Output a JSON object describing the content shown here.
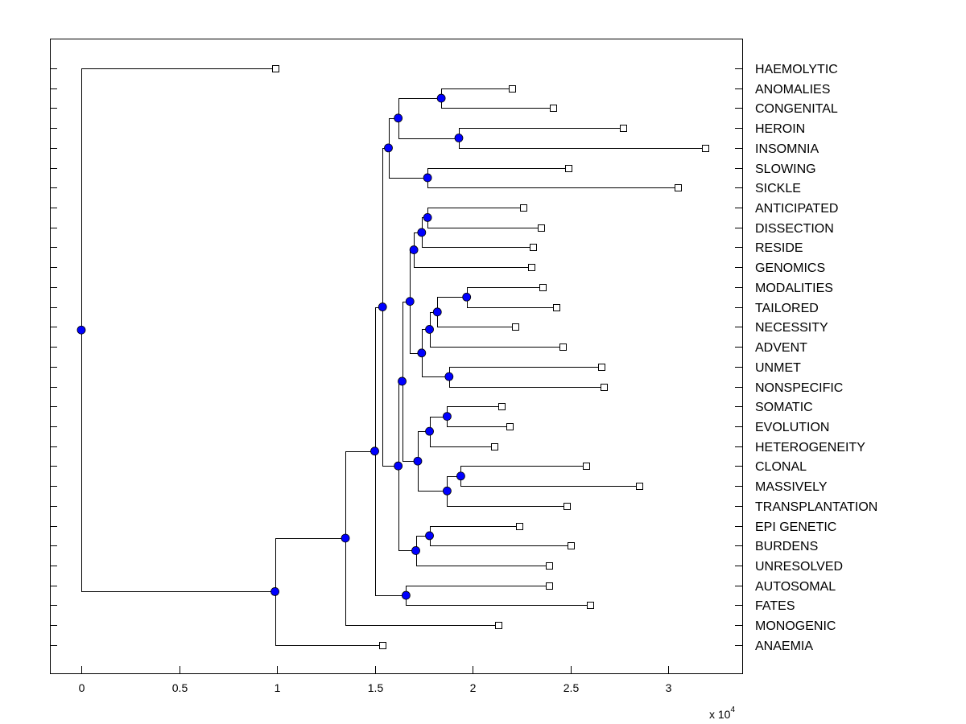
{
  "chart_data": {
    "type": "dendrogram",
    "title": "",
    "xlabel": "",
    "ylabel": "",
    "x_scale_label": "x 10",
    "x_scale_exponent": "4",
    "xlim": [
      -0.15,
      3.35
    ],
    "xticks": [
      0,
      0.5,
      1,
      1.5,
      2,
      2.5,
      3
    ],
    "xtick_labels": [
      "0",
      "0.5",
      "1",
      "1.5",
      "2",
      "2.5",
      "3"
    ],
    "colors": {
      "node": "#0000ff",
      "line": "#000000",
      "leaf": "#ffffff"
    },
    "leaves": [
      {
        "label": "HAEMOLYTIC",
        "x": 0.99
      },
      {
        "label": "ANOMALIES",
        "x": 2.2
      },
      {
        "label": "CONGENITAL",
        "x": 2.41
      },
      {
        "label": "HEROIN",
        "x": 2.77
      },
      {
        "label": "INSOMNIA",
        "x": 3.19
      },
      {
        "label": "SLOWING",
        "x": 2.49
      },
      {
        "label": "SICKLE",
        "x": 3.05
      },
      {
        "label": "ANTICIPATED",
        "x": 2.26
      },
      {
        "label": "DISSECTION",
        "x": 2.35
      },
      {
        "label": "RESIDE",
        "x": 2.31
      },
      {
        "label": "GENOMICS",
        "x": 2.3
      },
      {
        "label": "MODALITIES",
        "x": 2.36
      },
      {
        "label": "TAILORED",
        "x": 2.43
      },
      {
        "label": "NECESSITY",
        "x": 2.22
      },
      {
        "label": "ADVENT",
        "x": 2.46
      },
      {
        "label": "UNMET",
        "x": 2.66
      },
      {
        "label": "NONSPECIFIC",
        "x": 2.67
      },
      {
        "label": "SOMATIC",
        "x": 2.15
      },
      {
        "label": "EVOLUTION",
        "x": 2.19
      },
      {
        "label": "HETEROGENEITY",
        "x": 2.11
      },
      {
        "label": "CLONAL",
        "x": 2.58
      },
      {
        "label": "MASSIVELY",
        "x": 2.85
      },
      {
        "label": "TRANSPLANTATION",
        "x": 2.48
      },
      {
        "label": "EPI GENETIC",
        "x": 2.24
      },
      {
        "label": "BURDENS",
        "x": 2.5
      },
      {
        "label": "UNRESOLVED",
        "x": 2.39
      },
      {
        "label": "AUTOSOMAL",
        "x": 2.39
      },
      {
        "label": "FATES",
        "x": 2.6
      },
      {
        "label": "MONOGENIC",
        "x": 2.13
      },
      {
        "label": "ANAEMIA",
        "x": 1.54
      }
    ],
    "merges": [
      {
        "id": "n1",
        "x": 1.84,
        "children": [
          "L1",
          "L2"
        ]
      },
      {
        "id": "n2",
        "x": 1.93,
        "children": [
          "L3",
          "L4"
        ]
      },
      {
        "id": "n3",
        "x": 1.62,
        "children": [
          "n1",
          "n2"
        ]
      },
      {
        "id": "n4",
        "x": 1.77,
        "children": [
          "L5",
          "L6"
        ]
      },
      {
        "id": "n5",
        "x": 1.57,
        "children": [
          "n3",
          "n4"
        ]
      },
      {
        "id": "n6",
        "x": 1.77,
        "children": [
          "L7",
          "L8"
        ]
      },
      {
        "id": "n7",
        "x": 1.74,
        "children": [
          "n6",
          "L9"
        ]
      },
      {
        "id": "n8",
        "x": 1.7,
        "children": [
          "n7",
          "L10"
        ]
      },
      {
        "id": "n9",
        "x": 1.97,
        "children": [
          "L11",
          "L12"
        ]
      },
      {
        "id": "n10",
        "x": 1.82,
        "children": [
          "n9",
          "L13"
        ]
      },
      {
        "id": "n11",
        "x": 1.78,
        "children": [
          "n10",
          "L14"
        ]
      },
      {
        "id": "n12",
        "x": 1.88,
        "children": [
          "L15",
          "L16"
        ]
      },
      {
        "id": "n13",
        "x": 1.74,
        "children": [
          "n11",
          "n12"
        ]
      },
      {
        "id": "n14",
        "x": 1.68,
        "children": [
          "n8",
          "n13"
        ]
      },
      {
        "id": "n15",
        "x": 1.87,
        "children": [
          "L17",
          "L18"
        ]
      },
      {
        "id": "n16",
        "x": 1.78,
        "children": [
          "n15",
          "L19"
        ]
      },
      {
        "id": "n17",
        "x": 1.94,
        "children": [
          "L20",
          "L21"
        ]
      },
      {
        "id": "n18",
        "x": 1.87,
        "children": [
          "n17",
          "L22"
        ]
      },
      {
        "id": "n19",
        "x": 1.72,
        "children": [
          "n16",
          "n18"
        ]
      },
      {
        "id": "n20",
        "x": 1.64,
        "children": [
          "n14",
          "n19"
        ]
      },
      {
        "id": "n21",
        "x": 1.78,
        "children": [
          "L23",
          "L24"
        ]
      },
      {
        "id": "n22",
        "x": 1.71,
        "children": [
          "n21",
          "L25"
        ]
      },
      {
        "id": "n23",
        "x": 1.62,
        "children": [
          "n20",
          "n22"
        ]
      },
      {
        "id": "n24",
        "x": 1.54,
        "children": [
          "n5",
          "n23"
        ]
      },
      {
        "id": "n25",
        "x": 1.66,
        "children": [
          "L26",
          "L27"
        ]
      },
      {
        "id": "n26",
        "x": 1.5,
        "children": [
          "n24",
          "n25"
        ]
      },
      {
        "id": "n27",
        "x": 1.35,
        "children": [
          "n26",
          "L28"
        ]
      },
      {
        "id": "n28",
        "x": 0.99,
        "children": [
          "n27",
          "L29"
        ]
      },
      {
        "id": "n29",
        "x": 0.0,
        "children": [
          "L0",
          "n28"
        ]
      }
    ]
  }
}
